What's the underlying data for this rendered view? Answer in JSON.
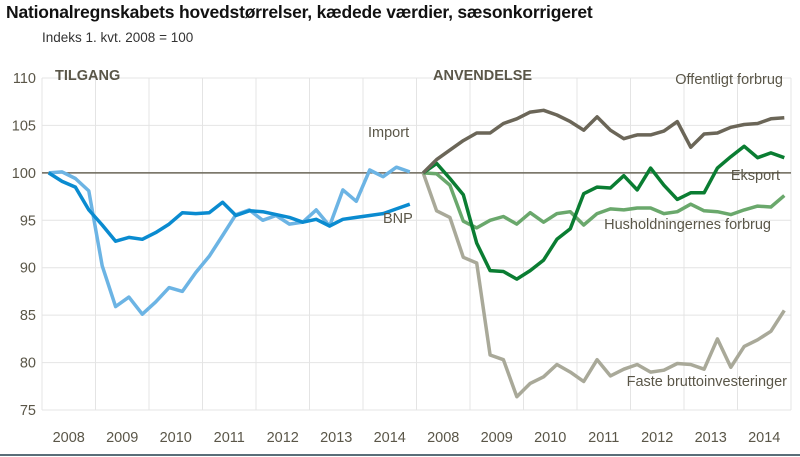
{
  "title": "Nationalregnskabets hovedstørrelser, kædede værdier, sæsonkorrigeret",
  "subtitle": "Indeks 1. kvt. 2008 = 100",
  "chart_data": [
    {
      "type": "line",
      "panel_title": "TILGANG",
      "x_tick_labels": [
        "2008",
        "2009",
        "2010",
        "2011",
        "2012",
        "2013",
        "2014"
      ],
      "x_frequency": "quarterly, 2008 Q1 – 2014 Q4",
      "ylim": [
        75,
        110
      ],
      "y_ticks": [
        75,
        80,
        85,
        90,
        95,
        100,
        105,
        110
      ],
      "reference_line": 100,
      "grid": true,
      "series": [
        {
          "name": "Import",
          "color": "#6cb4e4",
          "values": [
            100,
            100.1,
            99.4,
            98.1,
            90.2,
            85.9,
            86.9,
            85.1,
            86.4,
            87.9,
            87.5,
            89.5,
            91.2,
            93.4,
            95.6,
            96.1,
            95.0,
            95.5,
            94.6,
            94.8,
            96.1,
            94.4,
            98.2,
            97.0,
            100.3,
            99.6,
            100.6,
            100.1
          ]
        },
        {
          "name": "BNP",
          "color": "#0a8bd0",
          "values": [
            100,
            99.1,
            98.5,
            96.1,
            94.5,
            92.8,
            93.2,
            93.0,
            93.7,
            94.6,
            95.8,
            95.7,
            95.8,
            96.9,
            95.5,
            96.0,
            95.9,
            95.6,
            95.3,
            94.8,
            95.1,
            94.4,
            95.1,
            95.3,
            95.5,
            95.7,
            96.2,
            96.7
          ]
        }
      ]
    },
    {
      "type": "line",
      "panel_title": "ANVENDELSE",
      "x_tick_labels": [
        "2008",
        "2009",
        "2010",
        "2011",
        "2012",
        "2013",
        "2014"
      ],
      "x_frequency": "quarterly, 2008 Q1 – 2014 Q4",
      "ylim": [
        75,
        110
      ],
      "reference_line": 100,
      "grid": true,
      "series": [
        {
          "name": "Offentligt forbrug",
          "color": "#6b6658",
          "values": [
            100,
            101.4,
            102.4,
            103.4,
            104.2,
            104.2,
            105.2,
            105.7,
            106.4,
            106.6,
            106.1,
            105.4,
            104.5,
            105.9,
            104.5,
            103.6,
            104.0,
            104.0,
            104.4,
            105.4,
            102.7,
            104.1,
            104.2,
            104.8,
            105.1,
            105.2,
            105.7,
            105.8
          ]
        },
        {
          "name": "Eksport",
          "color": "#0a7d32",
          "values": [
            100,
            101.0,
            99.4,
            97.7,
            92.6,
            89.7,
            89.6,
            88.8,
            89.7,
            90.8,
            93.0,
            94.1,
            97.8,
            98.5,
            98.4,
            99.7,
            98.2,
            100.5,
            98.7,
            97.2,
            97.9,
            97.9,
            100.5,
            101.7,
            102.8,
            101.6,
            102.1,
            101.6
          ]
        },
        {
          "name": "Husholdningernes forbrug",
          "color": "#6aa86c",
          "values": [
            100,
            99.9,
            98.7,
            94.9,
            94.2,
            95.0,
            95.4,
            94.6,
            95.8,
            94.8,
            95.7,
            95.9,
            94.5,
            95.7,
            96.2,
            96.1,
            96.3,
            96.3,
            95.7,
            95.9,
            96.7,
            96.0,
            95.9,
            95.6,
            96.1,
            96.5,
            96.4,
            97.6
          ]
        },
        {
          "name": "Faste bruttoinvesteringer",
          "color": "#a9a999",
          "values": [
            100,
            96.0,
            95.3,
            91.1,
            90.5,
            80.8,
            80.3,
            76.4,
            77.8,
            78.5,
            79.8,
            79.0,
            78.0,
            80.3,
            78.6,
            79.3,
            79.8,
            79.0,
            79.2,
            79.9,
            79.8,
            79.3,
            82.5,
            79.5,
            81.7,
            82.4,
            83.3,
            85.5
          ]
        }
      ]
    }
  ]
}
